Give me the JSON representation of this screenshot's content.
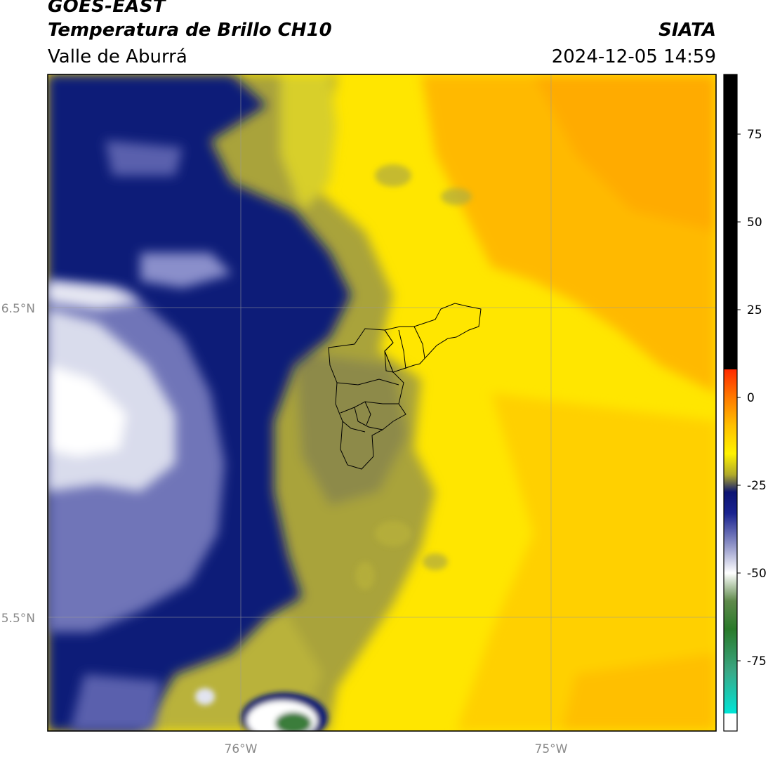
{
  "header": {
    "satellite": "GOES-EAST",
    "product": "Temperatura de Brillo CH10",
    "region": "Valle de Aburrá",
    "organization": "SIATA",
    "timestamp": "2024-12-05 14:59"
  },
  "axes": {
    "lat_labels": [
      {
        "value": 6.5,
        "text": "6.5°N"
      },
      {
        "value": 5.5,
        "text": "5.5°N"
      }
    ],
    "lon_labels": [
      {
        "value": -76,
        "text": "76°W"
      },
      {
        "value": -75,
        "text": "75°W"
      }
    ],
    "lon_range": [
      -76.625,
      -74.475
    ],
    "lat_range": [
      5.135,
      7.255
    ]
  },
  "colorbar": {
    "range": [
      -95,
      92
    ],
    "ticks": [
      {
        "value": 75,
        "text": "75"
      },
      {
        "value": 50,
        "text": "50"
      },
      {
        "value": 25,
        "text": "25"
      },
      {
        "value": 0,
        "text": "0"
      },
      {
        "value": -25,
        "text": "-25"
      },
      {
        "value": -50,
        "text": "-50"
      },
      {
        "value": -75,
        "text": "-75"
      }
    ],
    "stops": [
      {
        "value": 92,
        "color": "#000000"
      },
      {
        "value": 8,
        "color": "#000000"
      },
      {
        "value": 8,
        "color": "#ff2a00"
      },
      {
        "value": 0,
        "color": "#ff7a00"
      },
      {
        "value": -8,
        "color": "#ffc000"
      },
      {
        "value": -16,
        "color": "#fff200"
      },
      {
        "value": -22,
        "color": "#b0aa2a"
      },
      {
        "value": -27,
        "color": "#0c1473"
      },
      {
        "value": -33,
        "color": "#1a2390"
      },
      {
        "value": -42,
        "color": "#8f93c7"
      },
      {
        "value": -50,
        "color": "#ffffff"
      },
      {
        "value": -58,
        "color": "#5f8a4b"
      },
      {
        "value": -66,
        "color": "#2a7a2a"
      },
      {
        "value": -78,
        "color": "#3aa886"
      },
      {
        "value": -90,
        "color": "#00e5d7"
      },
      {
        "value": -90,
        "color": "#ffffff"
      },
      {
        "value": -95,
        "color": "#ffffff"
      }
    ]
  },
  "colors": {
    "warm_orange": "#ffb400",
    "yellow": "#ffe600",
    "olive": "#9c9a3a",
    "navy": "#101a78",
    "pale": "#d9dcec",
    "white": "#ffffff",
    "green": "#3a7d3a"
  }
}
